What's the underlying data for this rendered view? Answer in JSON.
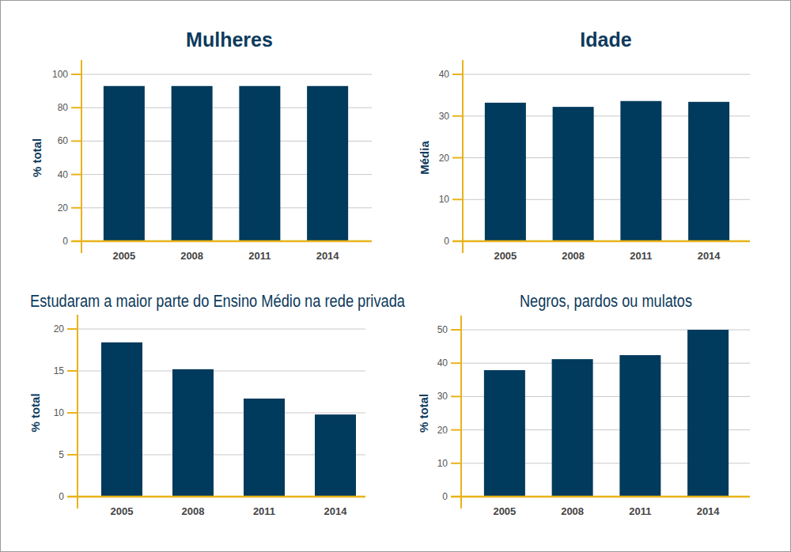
{
  "chart_data": [
    {
      "type": "bar",
      "title": "Mulheres",
      "ylabel": "% total",
      "categories": [
        "2005",
        "2008",
        "2011",
        "2014"
      ],
      "values": [
        93,
        93,
        93,
        93
      ],
      "color": "#003a5c",
      "ylim": [
        0,
        100
      ],
      "yticks": [
        0,
        20,
        40,
        60,
        80,
        100
      ],
      "grid": true
    },
    {
      "type": "bar",
      "title": "Idade",
      "ylabel": "Média",
      "categories": [
        "2005",
        "2008",
        "2011",
        "2014"
      ],
      "values": [
        33.2,
        32.2,
        33.6,
        33.4
      ],
      "color": "#003a5c",
      "ylim": [
        0,
        40
      ],
      "yticks": [
        0,
        10,
        20,
        30,
        40
      ],
      "grid": true
    },
    {
      "type": "bar",
      "title": "Estudaram a maior parte do Ensino Médio na rede privada",
      "ylabel": "% total",
      "categories": [
        "2005",
        "2008",
        "2011",
        "2014"
      ],
      "values": [
        18.4,
        15.2,
        11.7,
        9.8
      ],
      "color": "#003a5c",
      "ylim": [
        0,
        20
      ],
      "yticks": [
        0,
        5,
        10,
        15,
        20
      ],
      "grid": true
    },
    {
      "type": "bar",
      "title": "Negros, pardos ou mulatos",
      "ylabel": "% total",
      "categories": [
        "2005",
        "2008",
        "2011",
        "2014"
      ],
      "values": [
        37.9,
        41.2,
        42.4,
        50
      ],
      "color": "#003a5c",
      "ylim": [
        0,
        50
      ],
      "yticks": [
        0,
        10,
        20,
        30,
        40,
        50
      ],
      "grid": true
    }
  ]
}
